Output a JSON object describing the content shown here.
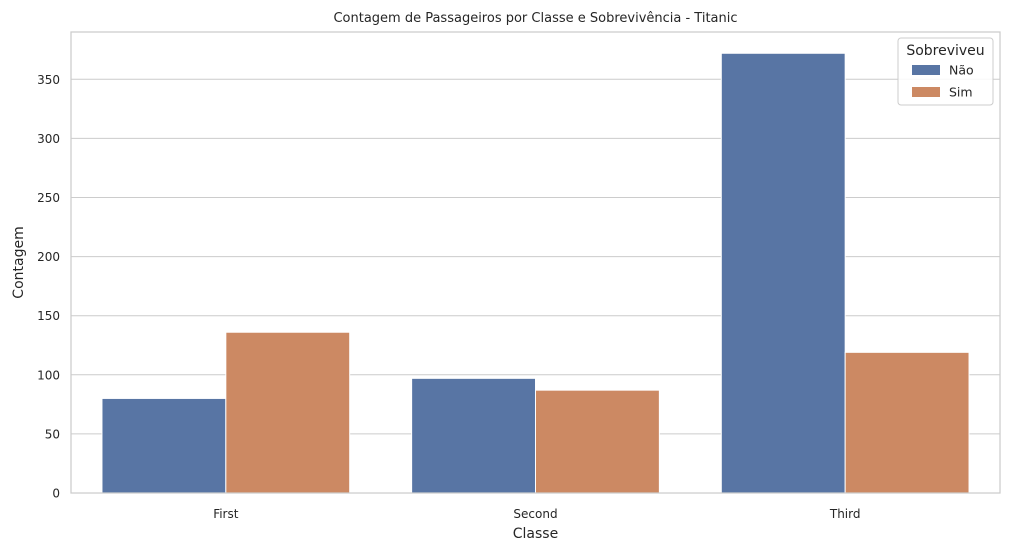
{
  "chart_data": {
    "type": "bar",
    "title": "Contagem de Passageiros por Classe e Sobrevivência - Titanic",
    "xlabel": "Classe",
    "ylabel": "Contagem",
    "categories": [
      "First",
      "Second",
      "Third"
    ],
    "series": [
      {
        "name": "Não",
        "values": [
          80,
          97,
          372
        ],
        "color": "#5875a4"
      },
      {
        "name": "Sim",
        "values": [
          136,
          87,
          119
        ],
        "color": "#cc8963"
      }
    ],
    "ylim": [
      0,
      390
    ],
    "yticks": [
      0,
      50,
      100,
      150,
      200,
      250,
      300,
      350
    ],
    "legend": {
      "title": "Sobreviveu",
      "position": "top-right"
    },
    "grid": "horizontal",
    "background": "#ffffff",
    "grid_color": "#cccccc",
    "spine_color": "#cccccc"
  }
}
